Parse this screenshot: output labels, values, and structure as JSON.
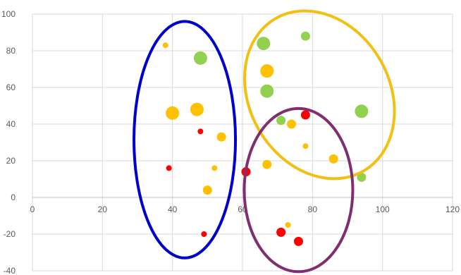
{
  "chart_data": {
    "type": "scatter",
    "title": "",
    "xlabel": "",
    "ylabel": "",
    "xlim": [
      0,
      120
    ],
    "ylim": [
      -40,
      100
    ],
    "x_ticks": [
      0,
      20,
      40,
      60,
      80,
      100,
      120
    ],
    "y_ticks": [
      -40,
      -20,
      0,
      20,
      40,
      60,
      80,
      100
    ],
    "x_tick_labels": [
      "0",
      "20",
      "40",
      "60",
      "80",
      "100",
      "120"
    ],
    "y_tick_labels": [
      "-40",
      "-20",
      "0",
      "20",
      "40",
      "60",
      "80",
      "100"
    ],
    "grid": true,
    "legend": false,
    "colors": {
      "green": "#92d050",
      "orange": "#ffc000",
      "red": "#ff0000"
    },
    "points": [
      {
        "x": 38,
        "y": 83,
        "color": "orange",
        "size": "small"
      },
      {
        "x": 48,
        "y": 76,
        "color": "green",
        "size": "large"
      },
      {
        "x": 40,
        "y": 46,
        "color": "orange",
        "size": "large"
      },
      {
        "x": 47,
        "y": 48,
        "color": "orange",
        "size": "large"
      },
      {
        "x": 48,
        "y": 36,
        "color": "red",
        "size": "small"
      },
      {
        "x": 54,
        "y": 33,
        "color": "orange",
        "size": "medium"
      },
      {
        "x": 39,
        "y": 16,
        "color": "red",
        "size": "small"
      },
      {
        "x": 52,
        "y": 16,
        "color": "orange",
        "size": "small"
      },
      {
        "x": 50,
        "y": 4,
        "color": "orange",
        "size": "medium"
      },
      {
        "x": 49,
        "y": -20,
        "color": "red",
        "size": "small"
      },
      {
        "x": 66,
        "y": 84,
        "color": "green",
        "size": "large"
      },
      {
        "x": 78,
        "y": 88,
        "color": "green",
        "size": "medium"
      },
      {
        "x": 67,
        "y": 69,
        "color": "orange",
        "size": "large"
      },
      {
        "x": 67,
        "y": 58,
        "color": "green",
        "size": "large"
      },
      {
        "x": 94,
        "y": 47,
        "color": "green",
        "size": "large"
      },
      {
        "x": 71,
        "y": 42,
        "color": "green",
        "size": "medium"
      },
      {
        "x": 74,
        "y": 40,
        "color": "orange",
        "size": "medium"
      },
      {
        "x": 78,
        "y": 45,
        "color": "red",
        "size": "medium"
      },
      {
        "x": 78,
        "y": 28,
        "color": "orange",
        "size": "small"
      },
      {
        "x": 86,
        "y": 21,
        "color": "orange",
        "size": "medium"
      },
      {
        "x": 94,
        "y": 11,
        "color": "green",
        "size": "medium"
      },
      {
        "x": 61,
        "y": 14,
        "color": "red",
        "size": "medium"
      },
      {
        "x": 67,
        "y": 18,
        "color": "orange",
        "size": "medium"
      },
      {
        "x": 73,
        "y": -15,
        "color": "orange",
        "size": "small"
      },
      {
        "x": 71,
        "y": -19,
        "color": "red",
        "size": "medium"
      },
      {
        "x": 76,
        "y": -24,
        "color": "red",
        "size": "medium"
      }
    ],
    "cluster_ellipses": [
      {
        "name": "left-cluster",
        "color": "#0000cc",
        "cx": 43.5,
        "cy": 31.5,
        "rx": 14.5,
        "ry": 64.5,
        "rotation": 0
      },
      {
        "name": "upper-right-cluster",
        "color": "#f2c015",
        "cx": 82,
        "cy": 56,
        "rx": 20,
        "ry": 48,
        "rotation": -30
      },
      {
        "name": "lower-right-cluster",
        "color": "#7f2f6f",
        "cx": 76,
        "cy": 4,
        "rx": 15.5,
        "ry": 44.5,
        "rotation": 0
      }
    ],
    "size_radius": {
      "small": 4,
      "medium": 6.5,
      "large": 9.5
    }
  }
}
